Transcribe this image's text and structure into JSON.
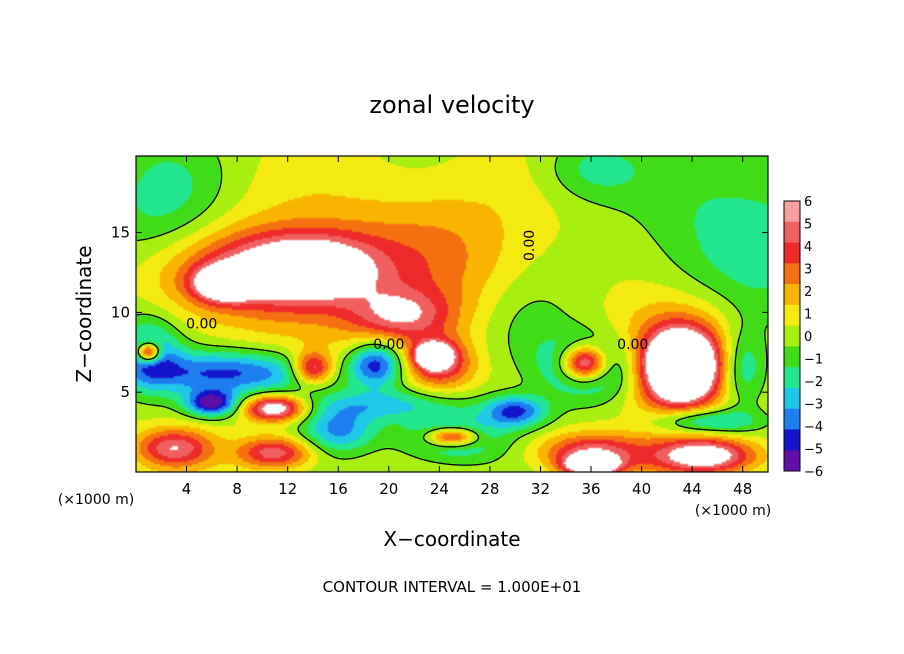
{
  "chart_data": {
    "type": "heatmap",
    "title": "zonal velocity",
    "xlabel": "X−coordinate",
    "ylabel": "Z−coordinate",
    "x_unit_label": "(×1000 m)",
    "y_unit_label": "(×1000 m)",
    "x_range": [
      0,
      50
    ],
    "y_range": [
      0,
      19.8
    ],
    "x_ticks": [
      4,
      8,
      12,
      16,
      20,
      24,
      28,
      32,
      36,
      40,
      44,
      48
    ],
    "y_ticks": [
      5,
      10,
      15
    ],
    "footer": "CONTOUR INTERVAL = 1.000E+01",
    "colorbar": {
      "levels": [
        6,
        5,
        4,
        3,
        2,
        1,
        0,
        -1,
        -2,
        -3,
        -4,
        -5,
        -6
      ],
      "colors": [
        "#f4a0a0",
        "#f06060",
        "#ee2a2a",
        "#f57010",
        "#f8b400",
        "#f2ea10",
        "#a8ee10",
        "#40dc18",
        "#22e68e",
        "#20c8e8",
        "#1e7ef0",
        "#1414cc",
        "#6010a8"
      ]
    },
    "contour_labels": [
      {
        "text": "0.00",
        "x": 5.2,
        "y": 9.0
      },
      {
        "text": "0.00",
        "x": 20.0,
        "y": 7.7
      },
      {
        "text": "0.00",
        "x": 31.5,
        "y": 14.2
      },
      {
        "text": "0.00",
        "x": 39.3,
        "y": 7.7
      }
    ],
    "features": [
      {
        "kind": "blob",
        "v": 2,
        "x": 15,
        "y": 12.5,
        "rx": 11,
        "ry": 5.0
      },
      {
        "kind": "blob",
        "v": 4,
        "x": 10,
        "y": 12.5,
        "rx": 7,
        "ry": 2.4
      },
      {
        "kind": "blob",
        "v": 5,
        "x": 14,
        "y": 12.8,
        "rx": 5,
        "ry": 2.0
      },
      {
        "kind": "blob",
        "v": 7,
        "x": 7,
        "y": 11.8,
        "rx": 2.2,
        "ry": 1.0
      },
      {
        "kind": "blob",
        "v": 4,
        "x": 21,
        "y": 9.8,
        "rx": 4,
        "ry": 1.6
      },
      {
        "kind": "blob",
        "v": 1.5,
        "x": 25,
        "y": 14,
        "rx": 7,
        "ry": 4.5
      },
      {
        "kind": "blob",
        "v": -5,
        "x": 8,
        "y": 6.2,
        "rx": 8,
        "ry": 1.4
      },
      {
        "kind": "blob",
        "v": -6,
        "x": 6,
        "y": 4.3,
        "rx": 2,
        "ry": 0.8
      },
      {
        "kind": "blob",
        "v": -4,
        "x": 1,
        "y": 7.5,
        "rx": 2.5,
        "ry": 2.2
      },
      {
        "kind": "blob",
        "v": 8,
        "x": 1,
        "y": 7.5,
        "rx": 0.9,
        "ry": 0.6
      },
      {
        "kind": "blob",
        "v": 7,
        "x": 11,
        "y": 4.0,
        "rx": 2.4,
        "ry": 0.8
      },
      {
        "kind": "blob",
        "v": 5,
        "x": 3,
        "y": 1.5,
        "rx": 3,
        "ry": 1.2
      },
      {
        "kind": "blob",
        "v": 5,
        "x": 11,
        "y": 1.2,
        "rx": 3,
        "ry": 1.0
      },
      {
        "kind": "blob",
        "v": -4,
        "x": 16,
        "y": 2.6,
        "rx": 3,
        "ry": 1.4
      },
      {
        "kind": "blob",
        "v": -4,
        "x": 25,
        "y": 2.2,
        "rx": 4,
        "ry": 1.5
      },
      {
        "kind": "blob",
        "v": 7,
        "x": 25,
        "y": 2.2,
        "rx": 2,
        "ry": 0.6
      },
      {
        "kind": "blob",
        "v": -5,
        "x": 19,
        "y": 6.8,
        "rx": 2,
        "ry": 1.4
      },
      {
        "kind": "blob",
        "v": 5,
        "x": 24,
        "y": 6.8,
        "rx": 2.6,
        "ry": 1.6
      },
      {
        "kind": "blob",
        "v": 8,
        "x": 23.5,
        "y": 7.3,
        "rx": 1.3,
        "ry": 0.7
      },
      {
        "kind": "blob",
        "v": 6,
        "x": 14,
        "y": 6.5,
        "rx": 1.6,
        "ry": 1.0
      },
      {
        "kind": "blob",
        "v": -3,
        "x": 19,
        "y": 4.2,
        "rx": 6,
        "ry": 1.0
      },
      {
        "kind": "blob",
        "v": -5,
        "x": 36,
        "y": 6.5,
        "rx": 4,
        "ry": 2.0
      },
      {
        "kind": "blob",
        "v": 9,
        "x": 35.5,
        "y": 6.8,
        "rx": 1.8,
        "ry": 1.1
      },
      {
        "kind": "blob",
        "v": 5,
        "x": 43,
        "y": 7,
        "rx": 5,
        "ry": 3.5
      },
      {
        "kind": "blob",
        "v": 10,
        "x": 43,
        "y": 6.6,
        "rx": 2.6,
        "ry": 2.0
      },
      {
        "kind": "blob",
        "v": 5,
        "x": 36,
        "y": 1.2,
        "rx": 4,
        "ry": 1.2
      },
      {
        "kind": "blob",
        "v": 8,
        "x": 36,
        "y": 0.4,
        "rx": 2,
        "ry": 0.6
      },
      {
        "kind": "blob",
        "v": 7,
        "x": 45,
        "y": 1.0,
        "rx": 4,
        "ry": 1.1
      },
      {
        "kind": "blob",
        "v": -4,
        "x": 45,
        "y": 3.2,
        "rx": 4,
        "ry": 0.8
      },
      {
        "kind": "blob",
        "v": -5,
        "x": 30,
        "y": 3.8,
        "rx": 2.5,
        "ry": 1.0
      },
      {
        "kind": "blob",
        "v": -2.3,
        "x": 2,
        "y": 17,
        "rx": 5,
        "ry": 4
      },
      {
        "kind": "blob",
        "v": -2.3,
        "x": 48,
        "y": 15,
        "rx": 8,
        "ry": 6
      },
      {
        "kind": "blob",
        "v": -2,
        "x": 36,
        "y": 19,
        "rx": 4,
        "ry": 2
      },
      {
        "kind": "blob",
        "v": -4,
        "x": 48,
        "y": 6.5,
        "rx": 2,
        "ry": 2.5
      },
      {
        "kind": "blob",
        "v": -1.5,
        "x": 31,
        "y": 9,
        "rx": 4,
        "ry": 3
      }
    ]
  }
}
